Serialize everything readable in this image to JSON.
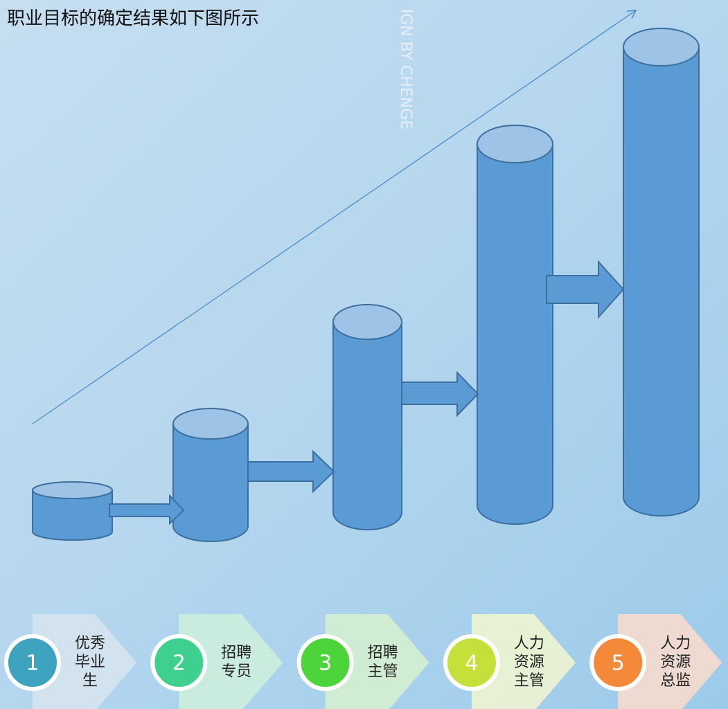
{
  "title": "职业目标的确定结果如下图所示",
  "watermark": "IGN BY CHENGE",
  "steps": [
    {
      "number": "1",
      "lines": [
        "优秀",
        "毕业",
        "生"
      ]
    },
    {
      "number": "2",
      "lines": [
        "招聘",
        "专员"
      ]
    },
    {
      "number": "3",
      "lines": [
        "招聘",
        "主管"
      ]
    },
    {
      "number": "4",
      "lines": [
        "人力",
        "资源",
        "主管"
      ]
    },
    {
      "number": "5",
      "lines": [
        "人力",
        "资源",
        "总监"
      ]
    }
  ]
}
